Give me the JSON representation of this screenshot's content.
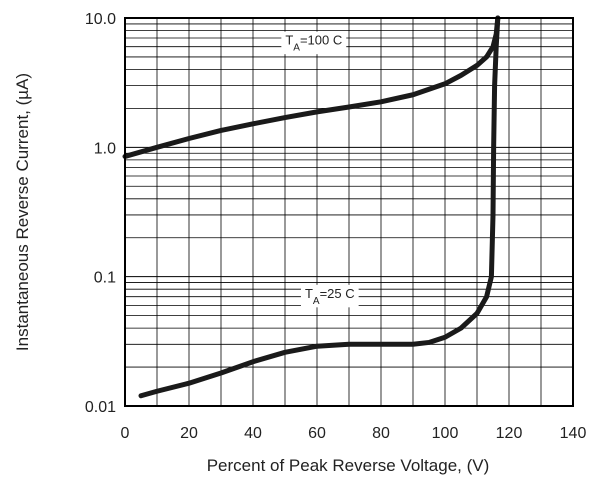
{
  "chart_data": {
    "type": "line",
    "title": "",
    "xlabel": "Percent of Peak Reverse Voltage, (V)",
    "ylabel": "Instantaneous Reverse Current, (µA)",
    "xlim": [
      0,
      140
    ],
    "ylim": [
      0.01,
      10
    ],
    "yscale": "log",
    "grid": true,
    "x_ticks": [
      0,
      20,
      40,
      60,
      80,
      100,
      120,
      140
    ],
    "x_tick_labels": [
      "0",
      "20",
      "40",
      "60",
      "80",
      "100",
      "120",
      "140"
    ],
    "y_ticks": [
      0.01,
      0.1,
      1,
      10
    ],
    "y_tick_labels": [
      "0.01",
      "0.1",
      "1.0",
      "10.0"
    ],
    "series": [
      {
        "name": "TA=100 C",
        "label_main": "T",
        "label_sub": "A",
        "label_rest": "=100 C",
        "label_at": {
          "x": 59,
          "y": 6.8
        },
        "x": [
          0,
          10,
          20,
          30,
          40,
          50,
          60,
          70,
          80,
          90,
          100,
          105,
          110,
          113,
          115,
          116,
          116.5
        ],
        "y": [
          0.85,
          1.0,
          1.17,
          1.35,
          1.52,
          1.7,
          1.88,
          2.05,
          2.25,
          2.55,
          3.1,
          3.6,
          4.3,
          5.0,
          6.0,
          7.5,
          10.0
        ]
      },
      {
        "name": "TA=25 C",
        "label_main": "T",
        "label_sub": "A",
        "label_rest": "=25 C",
        "label_at": {
          "x": 64,
          "y": 0.075
        },
        "x": [
          5,
          10,
          20,
          30,
          40,
          50,
          60,
          70,
          80,
          90,
          95,
          100,
          105,
          110,
          113,
          114.5,
          115,
          115.2,
          115.5,
          116,
          116.5
        ],
        "y": [
          0.012,
          0.013,
          0.015,
          0.018,
          0.022,
          0.026,
          0.029,
          0.03,
          0.03,
          0.03,
          0.031,
          0.034,
          0.04,
          0.052,
          0.07,
          0.1,
          0.3,
          1.0,
          3.0,
          6.0,
          10.0
        ]
      }
    ]
  }
}
